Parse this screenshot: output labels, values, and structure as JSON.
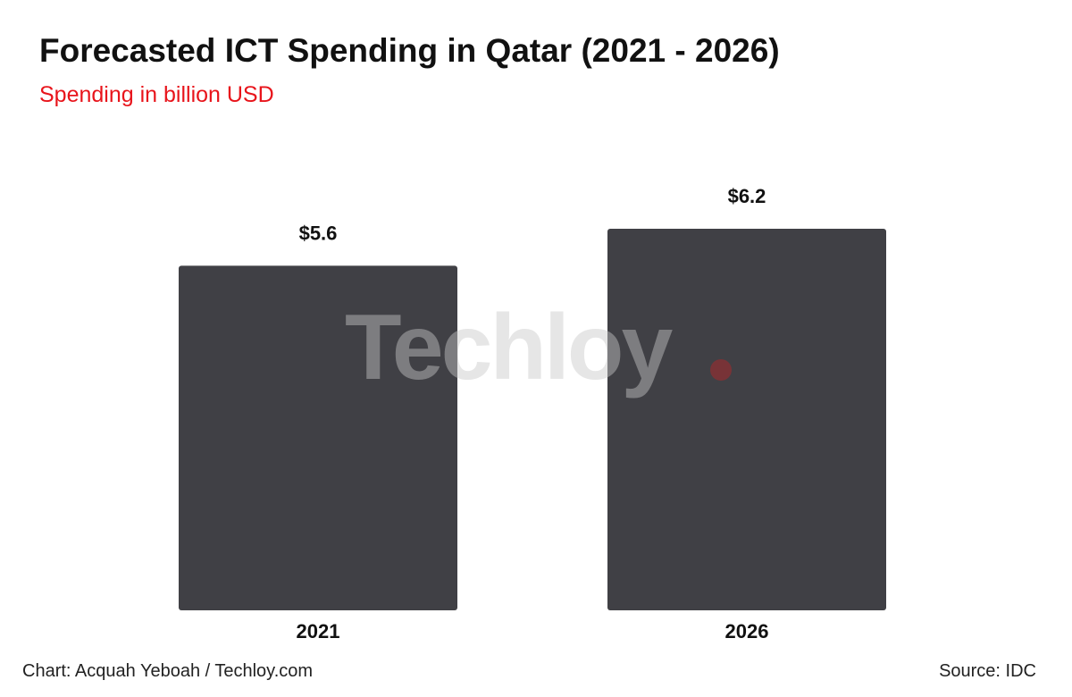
{
  "colors": {
    "bar": "#404045",
    "subtitle": "#e8141b",
    "label": "#111111"
  },
  "watermark": {
    "text": "Techloy"
  },
  "footer": {
    "credit": "Chart: Acquah Yeboah / Techloy.com",
    "source": "Source: IDC"
  },
  "chart_data": {
    "type": "bar",
    "title": "Forecasted ICT Spending in Qatar (2021 - 2026)",
    "subtitle": "Spending in billion USD",
    "categories": [
      "2021",
      "2026"
    ],
    "values": [
      5.6,
      6.2
    ],
    "value_labels": [
      "$5.6",
      "$6.2"
    ],
    "xlabel": "",
    "ylabel": "",
    "ylim": [
      0,
      6.2
    ],
    "grid": false
  }
}
